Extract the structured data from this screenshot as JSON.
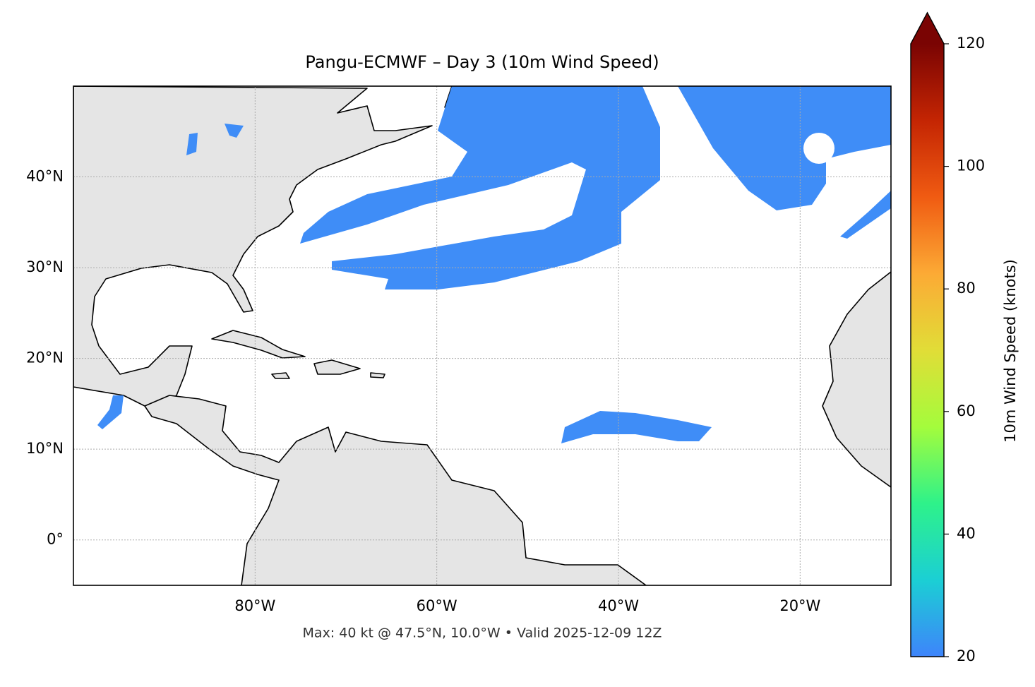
{
  "chart_data": {
    "type": "map",
    "title": "Pangu-ECMWF – Day 3 (10m Wind Speed)",
    "footnote": "Max: 40 kt @ 47.5°N, 10.0°W • Valid 2025-12-09 12Z",
    "xlim": [
      -100,
      -10
    ],
    "ylim": [
      -5,
      50
    ],
    "xticks": [
      {
        "value": -80,
        "label": "80°W"
      },
      {
        "value": -60,
        "label": "60°W"
      },
      {
        "value": -40,
        "label": "40°W"
      },
      {
        "value": -20,
        "label": "20°W"
      }
    ],
    "yticks": [
      {
        "value": 0,
        "label": "0°"
      },
      {
        "value": 10,
        "label": "10°N"
      },
      {
        "value": 20,
        "label": "20°N"
      },
      {
        "value": 30,
        "label": "30°N"
      },
      {
        "value": 40,
        "label": "40°N"
      }
    ],
    "grid": true,
    "colorbar": {
      "label": "10m Wind Speed (knots)",
      "clim": [
        20,
        120
      ],
      "ticks": [
        20,
        40,
        60,
        80,
        100,
        120
      ],
      "colors": [
        "#3e84fb",
        "#1bcfd4",
        "#2ef28a",
        "#a4fc3c",
        "#e1dd37",
        "#fcaa35",
        "#f05b12",
        "#c42503",
        "#7a0403"
      ]
    }
  }
}
